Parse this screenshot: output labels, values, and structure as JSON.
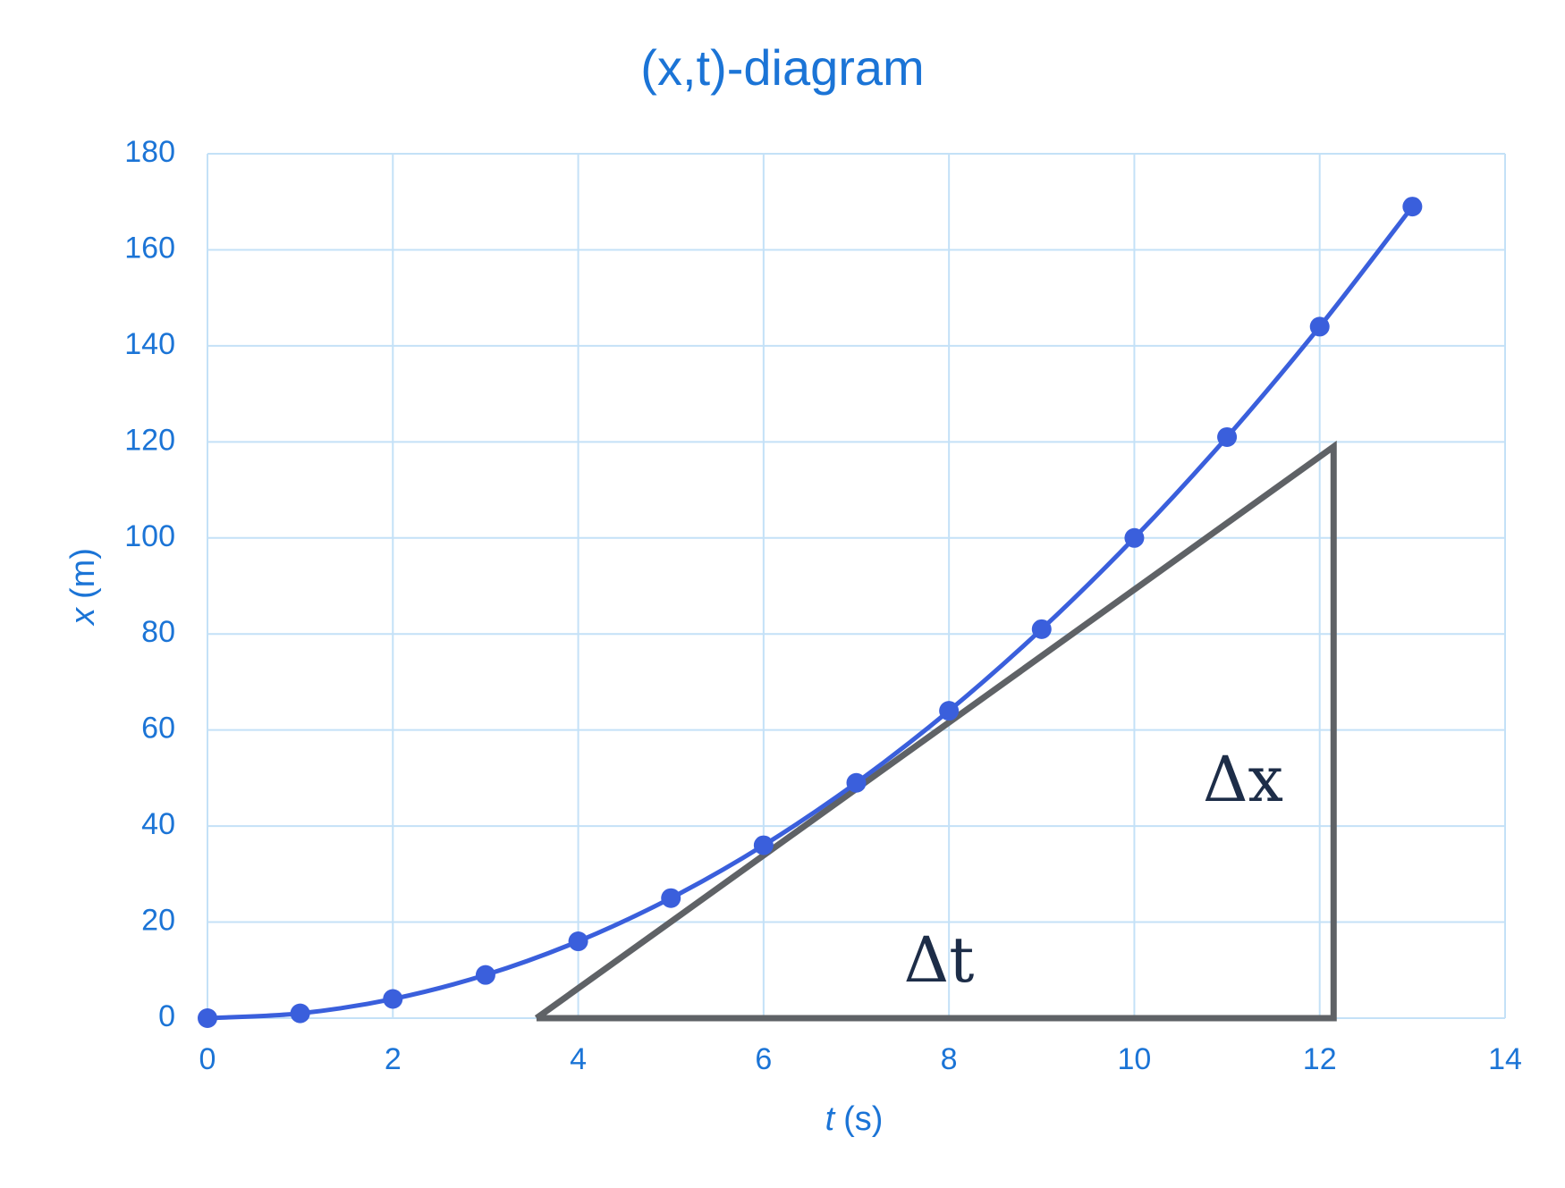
{
  "chart_data": {
    "type": "line",
    "title": "(x,t)-diagram",
    "xlabel": [
      "t",
      "(s)"
    ],
    "ylabel": [
      "x",
      "(m)"
    ],
    "x": [
      0,
      1,
      2,
      3,
      4,
      5,
      6,
      7,
      8,
      9,
      10,
      11,
      12,
      13
    ],
    "series": [
      {
        "color": "#3a5fdc",
        "values": [
          0,
          1,
          4,
          9,
          16,
          25,
          36,
          49,
          64,
          81,
          100,
          121,
          144,
          169
        ]
      }
    ],
    "triangle": {
      "color": "#5f6266",
      "x": [
        3.55,
        12.15,
        12.15,
        3.55
      ],
      "y": [
        0,
        119,
        0,
        0
      ]
    },
    "annotations": [
      "Δt",
      "Δx"
    ],
    "xlim": [
      0,
      14
    ],
    "xticks": [
      0,
      2,
      4,
      6,
      8,
      10,
      12,
      14
    ],
    "ylim": [
      0,
      180
    ],
    "yticks": [
      0,
      20,
      40,
      60,
      80,
      100,
      120,
      140,
      160,
      180
    ],
    "grid": true,
    "text_color": "#1b74d6",
    "grid_color": "#c4e1f7",
    "annotation_color": "#1d2d48"
  }
}
